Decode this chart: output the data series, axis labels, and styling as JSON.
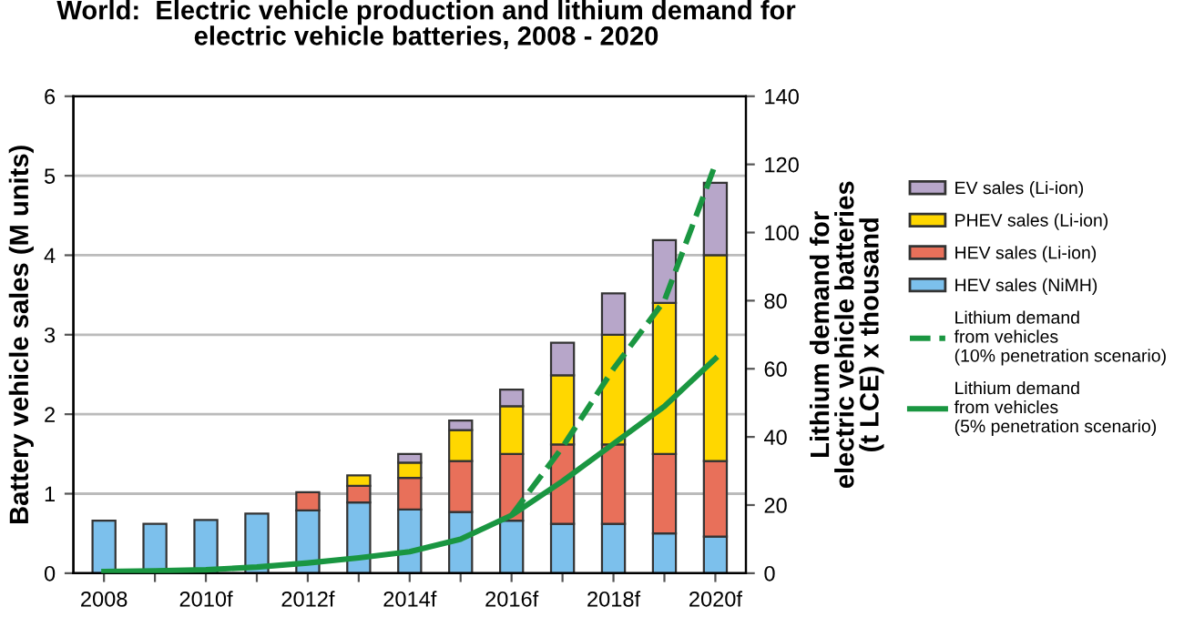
{
  "chart_data": {
    "type": "bar",
    "title": "World:  Electric vehicle production and lithium demand for\nelectric vehicle batteries, 2008 - 2020",
    "ylabel": "Battery vehicle sales (M units)",
    "y2label": "Lithium demand for\nelectric vehicle batteries\n(t LCE) x thousand",
    "categories": [
      "2008",
      null,
      "2010f",
      null,
      "2012f",
      null,
      "2014f",
      null,
      "2016f",
      null,
      "2018f",
      null,
      "2020f"
    ],
    "stacked": true,
    "series": [
      {
        "name": "HEV sales (NiMH)",
        "color": "#7cc0ec",
        "values": [
          0.66,
          0.62,
          0.67,
          0.75,
          0.79,
          0.89,
          0.8,
          0.77,
          0.66,
          0.62,
          0.62,
          0.5,
          0.46
        ]
      },
      {
        "name": "HEV sales (Li-ion)",
        "color": "#e8705a",
        "values": [
          null,
          null,
          null,
          null,
          0.23,
          0.21,
          0.4,
          0.64,
          0.84,
          1.0,
          1.0,
          1.0,
          0.95
        ]
      },
      {
        "name": "PHEV sales (Li-ion)",
        "color": "#ffd700",
        "values": [
          null,
          null,
          null,
          null,
          null,
          0.13,
          0.19,
          0.39,
          0.6,
          0.87,
          1.38,
          1.9,
          2.59
        ]
      },
      {
        "name": "EV sales (Li-ion)",
        "color": "#b7a6c9",
        "values": [
          null,
          null,
          null,
          null,
          null,
          null,
          0.11,
          0.12,
          0.21,
          0.41,
          0.52,
          0.79,
          0.91
        ]
      },
      {
        "name": "Lithium demand\nfrom vehicles\n(10% penetration scenario)",
        "type": "line",
        "axis": "y2",
        "line_style": "dashed",
        "color": "#1a9641",
        "values": [
          null,
          null,
          null,
          null,
          null,
          null,
          null,
          null,
          17,
          37,
          60,
          80,
          120
        ]
      },
      {
        "name": "Lithium demand\nfrom vehicles\n(5% penetration scenario)",
        "type": "line",
        "axis": "y2",
        "line_style": "solid",
        "color": "#1a9641",
        "values": [
          0.5,
          0.7,
          1,
          1.8,
          3,
          4.5,
          6.3,
          10,
          17,
          27,
          38,
          49,
          63
        ]
      }
    ],
    "ylim": [
      0,
      6
    ],
    "yticks": [
      0,
      1,
      2,
      3,
      4,
      5,
      6
    ],
    "y2lim": [
      0,
      140
    ],
    "y2ticks": [
      0,
      20,
      40,
      60,
      80,
      100,
      120,
      140
    ],
    "grid": "y",
    "legend": "right"
  }
}
